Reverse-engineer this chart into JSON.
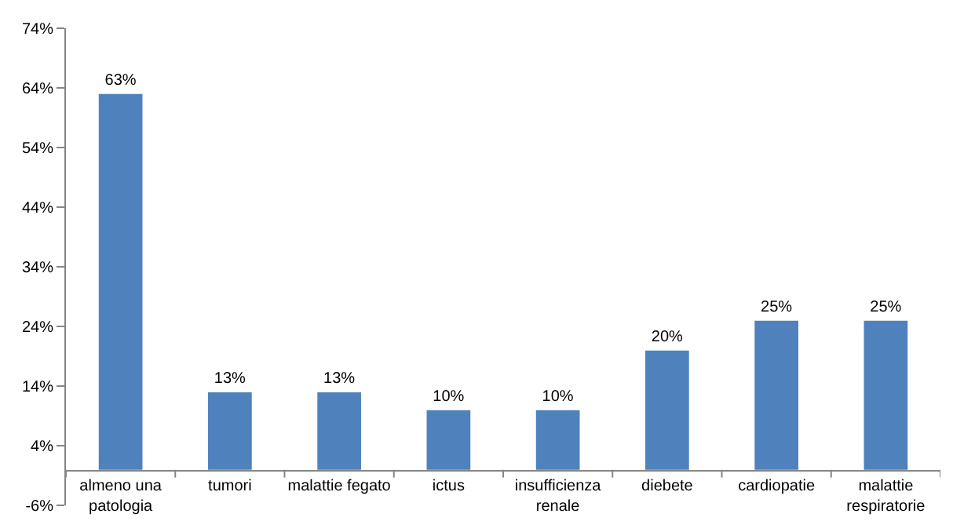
{
  "chart_data": {
    "type": "bar",
    "categories": [
      "almeno una patologia",
      "tumori",
      "malattie fegato",
      "ictus",
      "insufficienza renale",
      "diebete",
      "cardiopatie",
      "malattie respiratorie"
    ],
    "values": [
      63,
      13,
      13,
      10,
      10,
      20,
      25,
      25
    ],
    "value_labels": [
      "63%",
      "13%",
      "13%",
      "10%",
      "10%",
      "20%",
      "25%",
      "25%"
    ],
    "color": "#4f81bd",
    "ylim": [
      -6,
      74
    ],
    "yticks": [
      {
        "value": -6,
        "label": "-6%"
      },
      {
        "value": 4,
        "label": "4%"
      },
      {
        "value": 14,
        "label": "14%"
      },
      {
        "value": 24,
        "label": "24%"
      },
      {
        "value": 34,
        "label": "34%"
      },
      {
        "value": 44,
        "label": "44%"
      },
      {
        "value": 54,
        "label": "54%"
      },
      {
        "value": 64,
        "label": "64%"
      },
      {
        "value": 74,
        "label": "74%"
      }
    ],
    "legend": false
  }
}
